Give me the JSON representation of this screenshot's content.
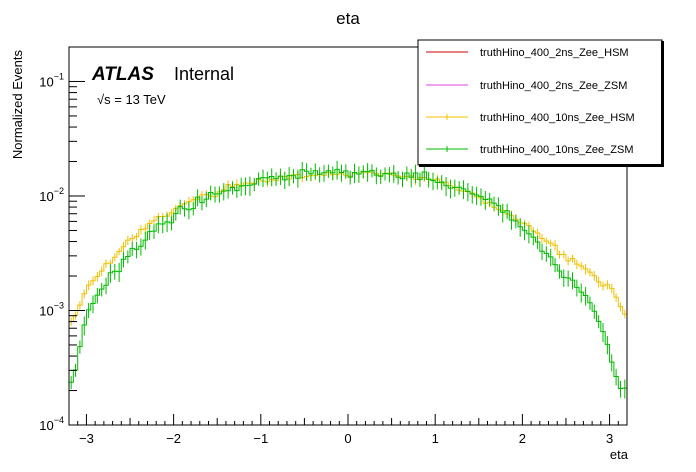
{
  "chart_data": {
    "type": "line",
    "title": "eta",
    "xlabel": "eta",
    "ylabel": "Normalized Events",
    "xlim": [
      -3.2,
      3.2
    ],
    "ylim": [
      0.0001,
      0.2
    ],
    "yscale": "log",
    "x_ticks": [
      "−3",
      "−2",
      "−1",
      "0",
      "1",
      "2",
      "3"
    ],
    "x_tick_values": [
      -3,
      -2,
      -1,
      0,
      1,
      2,
      3
    ],
    "y_ticks": [
      {
        "base": "10",
        "exp": "−4",
        "value": 0.0001
      },
      {
        "base": "10",
        "exp": "−3",
        "value": 0.001
      },
      {
        "base": "10",
        "exp": "−2",
        "value": 0.01
      },
      {
        "base": "10",
        "exp": "−1",
        "value": 0.1
      }
    ],
    "grid": false,
    "legend_position": "top-right",
    "annotations": {
      "experiment": "ATLAS",
      "status": "Internal",
      "energy": "√s = 13 TeV"
    },
    "binning": {
      "nbins": 128,
      "low": -3.2,
      "high": 3.2
    },
    "series": [
      {
        "name": "truthHino_400_2ns_Zee_HSM",
        "color": "#cc0000",
        "visible_in_plot": false
      },
      {
        "name": "truthHino_400_2ns_Zee_ZSM",
        "color": "#e040e0",
        "visible_in_plot": false
      },
      {
        "name": "truthHino_400_10ns_Zee_HSM",
        "color": "#f0c000",
        "knots": [
          [
            -3.15,
            0.0008
          ],
          [
            -3.0,
            0.0016
          ],
          [
            -2.75,
            0.0026
          ],
          [
            -2.5,
            0.0042
          ],
          [
            -2.2,
            0.0062
          ],
          [
            -2.0,
            0.0075
          ],
          [
            -1.75,
            0.0093
          ],
          [
            -1.5,
            0.0108
          ],
          [
            -1.25,
            0.0128
          ],
          [
            -1.0,
            0.0136
          ],
          [
            -0.75,
            0.0142
          ],
          [
            -0.5,
            0.0148
          ],
          [
            -0.25,
            0.0152
          ],
          [
            0.0,
            0.0156
          ],
          [
            0.25,
            0.0158
          ],
          [
            0.5,
            0.0152
          ],
          [
            0.75,
            0.0145
          ],
          [
            1.0,
            0.014
          ],
          [
            1.25,
            0.0115
          ],
          [
            1.5,
            0.0098
          ],
          [
            1.75,
            0.0075
          ],
          [
            2.0,
            0.0058
          ],
          [
            2.25,
            0.0042
          ],
          [
            2.5,
            0.003
          ],
          [
            2.75,
            0.0022
          ],
          [
            3.0,
            0.0016
          ],
          [
            3.2,
            0.0009
          ]
        ],
        "stat_rel": 0.09,
        "seed": 17
      },
      {
        "name": "truthHino_400_10ns_Zee_ZSM",
        "color": "#00bb00",
        "knots": [
          [
            -3.15,
            0.00025
          ],
          [
            -3.0,
            0.0009
          ],
          [
            -2.8,
            0.0017
          ],
          [
            -2.5,
            0.0032
          ],
          [
            -2.2,
            0.0054
          ],
          [
            -2.0,
            0.0068
          ],
          [
            -1.75,
            0.0088
          ],
          [
            -1.5,
            0.0105
          ],
          [
            -1.25,
            0.0122
          ],
          [
            -1.0,
            0.0135
          ],
          [
            -0.75,
            0.015
          ],
          [
            -0.5,
            0.0158
          ],
          [
            -0.25,
            0.0165
          ],
          [
            0.0,
            0.0162
          ],
          [
            0.25,
            0.016
          ],
          [
            0.5,
            0.0152
          ],
          [
            0.75,
            0.0148
          ],
          [
            1.0,
            0.0138
          ],
          [
            1.25,
            0.012
          ],
          [
            1.5,
            0.01
          ],
          [
            1.75,
            0.0078
          ],
          [
            2.0,
            0.0052
          ],
          [
            2.25,
            0.0032
          ],
          [
            2.5,
            0.002
          ],
          [
            2.75,
            0.0013
          ],
          [
            2.95,
            0.0006
          ],
          [
            3.1,
            0.00022
          ]
        ],
        "stat_rel": 0.16,
        "seed": 91
      }
    ]
  }
}
